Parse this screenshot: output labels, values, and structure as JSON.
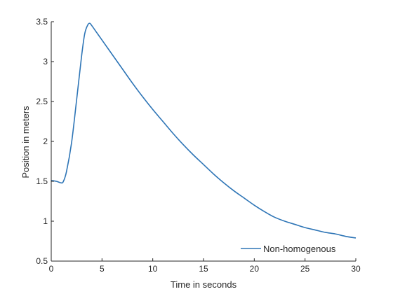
{
  "chart_data": {
    "type": "line",
    "title": "",
    "xlabel": "Time in seconds",
    "ylabel": "Position in meters",
    "xlim": [
      0,
      30
    ],
    "ylim": [
      0.5,
      3.5
    ],
    "xticks": [
      0,
      5,
      10,
      15,
      20,
      25,
      30
    ],
    "xtick_labels": [
      "0",
      "5",
      "10",
      "15",
      "20",
      "25",
      "30"
    ],
    "yticks": [
      0.5,
      1,
      1.5,
      2,
      2.5,
      3,
      3.5
    ],
    "ytick_labels": [
      "0.5",
      "1",
      "1.5",
      "2",
      "2.5",
      "3",
      "3.5"
    ],
    "grid": false,
    "legend_position": "bottom-right",
    "series": [
      {
        "name": "Non-homogenous",
        "color": "#2E75B6",
        "x": [
          0,
          0.5,
          1.0,
          1.2,
          1.5,
          2.0,
          2.5,
          3.0,
          3.3,
          3.6,
          3.8,
          4.0,
          4.5,
          5.0,
          6.0,
          7.0,
          8.0,
          9.0,
          10.0,
          11.0,
          12.0,
          13.0,
          14.0,
          15.0,
          16.0,
          17.0,
          18.0,
          19.0,
          20.0,
          21.0,
          22.0,
          23.0,
          24.0,
          25.0,
          26.0,
          27.0,
          28.0,
          29.0,
          30.0
        ],
        "y": [
          1.51,
          1.5,
          1.48,
          1.5,
          1.62,
          1.98,
          2.52,
          3.08,
          3.35,
          3.46,
          3.48,
          3.45,
          3.36,
          3.27,
          3.09,
          2.91,
          2.73,
          2.56,
          2.4,
          2.25,
          2.1,
          1.96,
          1.83,
          1.71,
          1.59,
          1.48,
          1.38,
          1.29,
          1.2,
          1.12,
          1.05,
          1.0,
          0.96,
          0.92,
          0.89,
          0.86,
          0.84,
          0.81,
          0.79
        ]
      }
    ]
  }
}
